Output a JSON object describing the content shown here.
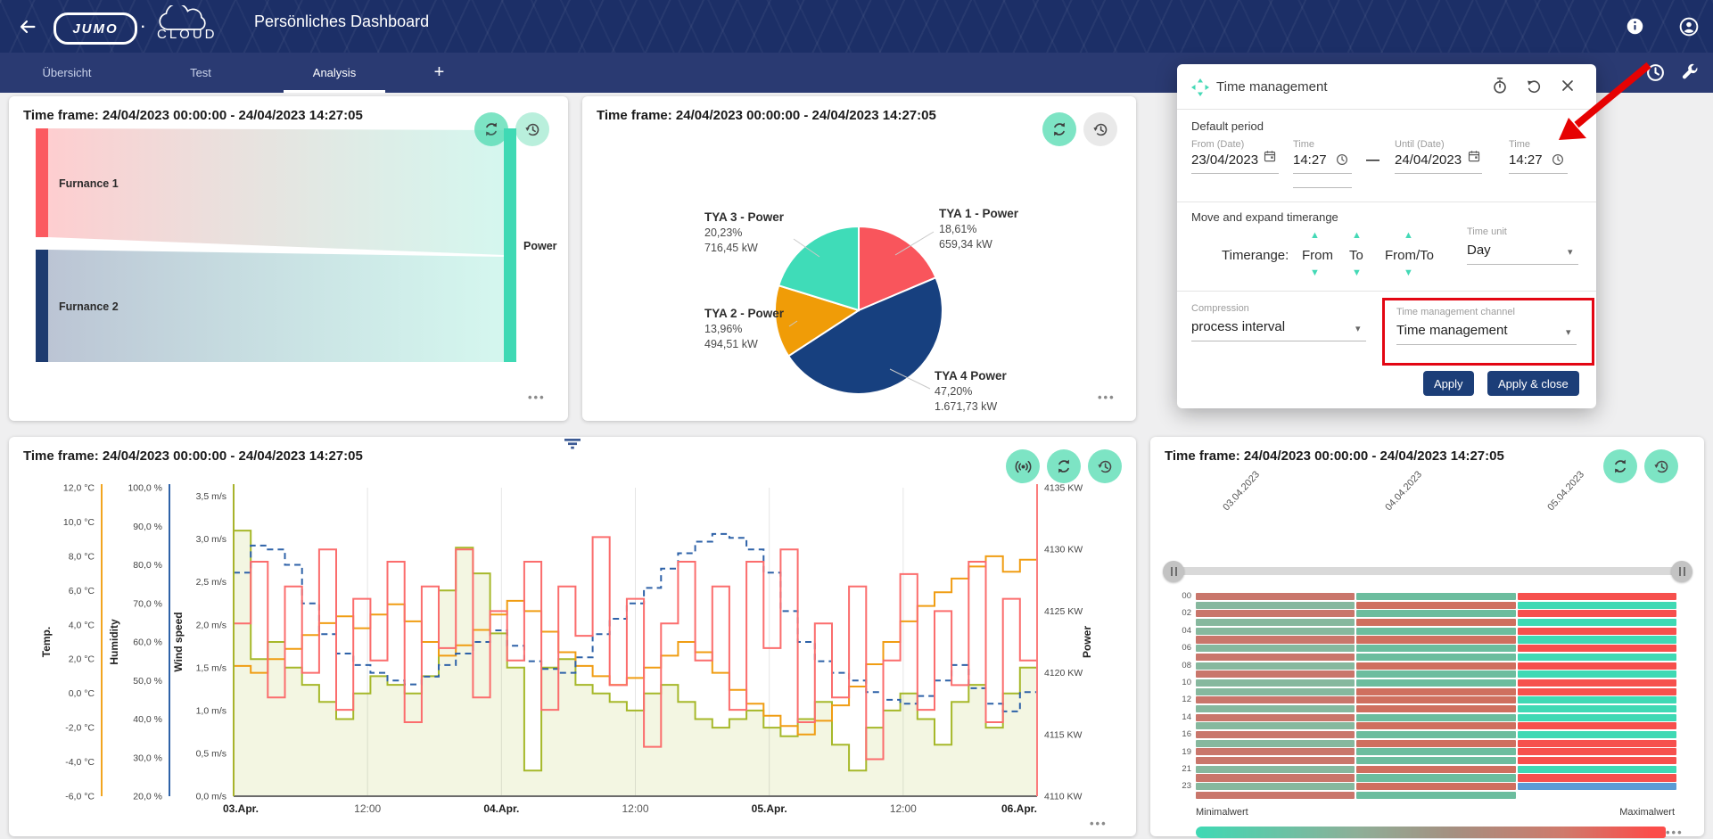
{
  "header": {
    "title": "Persönliches Dashboard",
    "brand": "JUMO",
    "brand_sub": "CLOUD",
    "brand_dot": "·"
  },
  "tabbar": {
    "tabs": [
      {
        "label": "Übersicht",
        "active": false
      },
      {
        "label": "Test",
        "active": false
      },
      {
        "label": "Analysis",
        "active": true
      }
    ],
    "add_tab_label": "+"
  },
  "cards": {
    "time_frame_title": "Time frame: 24/04/2023 00:00:00 - 24/04/2023 14:27:05",
    "menu_dots": "•••"
  },
  "dialog": {
    "title": "Time management",
    "default_period": {
      "label": "Default period",
      "from_date_label": "From (Date)",
      "from_date_value": "23/04/2023",
      "from_time_label": "Time",
      "from_time_value": "14:27",
      "range_dash": "—",
      "until_date_label": "Until (Date)",
      "until_date_value": "24/04/2023",
      "until_time_label": "Time",
      "until_time_value": "14:27"
    },
    "move_expand": {
      "label": "Move and expand timerange",
      "timerange_label": "Timerange:",
      "from_label": "From",
      "to_label": "To",
      "fromto_label": "From/To",
      "time_unit_label": "Time unit",
      "time_unit_value": "Day",
      "up_arrow": "▲",
      "down_arrow": "▼"
    },
    "compression": {
      "label": "Compression",
      "value": "process interval"
    },
    "channel": {
      "label": "Time management channel",
      "value": "Time management"
    },
    "buttons": {
      "apply": "Apply",
      "apply_close": "Apply & close"
    },
    "accent_color": "#44d9b6",
    "highlight_color": "#e30613"
  },
  "chart_data": [
    {
      "type": "sankey",
      "title": "Time frame: 24/04/2023 00:00:00 - 24/04/2023 14:27:05",
      "nodes": [
        {
          "label": "Furnance 1",
          "color": "#fb5a60"
        },
        {
          "label": "Furnance 2",
          "color": "#1d3b70"
        },
        {
          "label": "Power",
          "color": "#3fd9b4"
        }
      ],
      "links": [
        {
          "source": "Furnance 1",
          "target": "Power"
        },
        {
          "source": "Furnance 2",
          "target": "Power"
        }
      ]
    },
    {
      "type": "pie",
      "title": "Time frame: 24/04/2023 00:00:00 - 24/04/2023 14:27:05",
      "slices": [
        {
          "label": "TYA 1 - Power",
          "pct": 18.61,
          "pct_label": "18,61%",
          "value_label": "659,34 kW",
          "color": "#f9555c"
        },
        {
          "label": "TYA 4 Power",
          "pct": 47.2,
          "pct_label": "47,20%",
          "value_label": "1.671,73 kW",
          "color": "#17407f"
        },
        {
          "label": "TYA 2 - Power",
          "pct": 13.96,
          "pct_label": "13,96%",
          "value_label": "494,51 kW",
          "color": "#f09c07"
        },
        {
          "label": "TYA 3 - Power",
          "pct": 20.23,
          "pct_label": "20,23%",
          "value_label": "716,45 kW",
          "color": "#3fdcb8"
        }
      ]
    },
    {
      "type": "line",
      "title": "Time frame: 24/04/2023 00:00:00 - 24/04/2023 14:27:05",
      "x_tick_labels": [
        "03.Apr.",
        "12:00",
        "04.Apr.",
        "12:00",
        "05.Apr.",
        "12:00",
        "06.Apr."
      ],
      "axes": {
        "temp": {
          "label": "Temp.",
          "color": "#f2a51f",
          "min": -6,
          "max": 12,
          "tick_values": [
            12,
            10,
            8,
            6,
            4,
            2,
            0,
            -2,
            -4,
            -6
          ],
          "tick_labels": [
            "12,0 °C",
            "10,0 °C",
            "8,0 °C",
            "6,0 °C",
            "4,0 °C",
            "2,0 °C",
            "0,0 °C",
            "-2,0 °C",
            "-4,0 °C",
            "-6,0 °C"
          ]
        },
        "humidity": {
          "label": "Humidity",
          "color": "#2e62a8",
          "min": 20,
          "max": 100,
          "tick_values": [
            100,
            90,
            80,
            70,
            60,
            50,
            40,
            30,
            20
          ],
          "tick_labels": [
            "100,0 %",
            "90,0 %",
            "80,0 %",
            "70,0 %",
            "60,0 %",
            "50,0 %",
            "40,0 %",
            "30,0 %",
            "20,0 %"
          ]
        },
        "wind": {
          "label": "Wind speed",
          "color": "#a8b32b",
          "min": 0,
          "max": 3.6,
          "tick_values": [
            3.5,
            3.0,
            2.5,
            2.0,
            1.5,
            1.0,
            0.5,
            0.0
          ],
          "tick_labels": [
            "3,5 m/s",
            "3,0 m/s",
            "2,5 m/s",
            "2,0 m/s",
            "1,5 m/s",
            "1,0 m/s",
            "0,5 m/s",
            "0,0 m/s"
          ]
        },
        "power": {
          "label": "Power",
          "color": "#fb7d7d",
          "min": 4110,
          "max": 4135,
          "tick_values": [
            4135,
            4130,
            4125,
            4120,
            4115,
            4110
          ],
          "tick_labels": [
            "4135 KW",
            "4130 KW",
            "4125 KW",
            "4120 KW",
            "4115 KW",
            "4110 KW"
          ]
        }
      },
      "series": [
        {
          "name": "Wind speed",
          "axis": "wind",
          "color": "#a6b82a",
          "style": "step-area",
          "fill": "#f3f6e2",
          "values": [
            3.1,
            1.6,
            1.8,
            1.5,
            1.3,
            1.1,
            0.9,
            1.2,
            1.4,
            1.3,
            1.2,
            1.4,
            2.4,
            2.9,
            2.6,
            1.9,
            1.5,
            0.3,
            1.5,
            1.6,
            1.3,
            1.2,
            1.1,
            1.0,
            1.2,
            1.3,
            1.1,
            0.9,
            0.8,
            0.9,
            1.0,
            0.8,
            0.7,
            0.9,
            1.1,
            0.6,
            0.3,
            0.8,
            1.0,
            1.2,
            0.9,
            0.6,
            1.1,
            1.3,
            0.8,
            1.2,
            1.5,
            1.0
          ]
        },
        {
          "name": "Temp.",
          "axis": "temp",
          "color": "#f09d13",
          "style": "step",
          "values": [
            1.6,
            1.2,
            2.0,
            2.6,
            3.4,
            4.1,
            4.5,
            3.8,
            4.6,
            5.2,
            4.2,
            3.0,
            2.2,
            2.8,
            3.7,
            4.6,
            5.4,
            4.8,
            3.6,
            2.4,
            1.6,
            1.0,
            0.5,
            0.9,
            1.5,
            2.2,
            3.0,
            2.4,
            1.2,
            0.2,
            -0.6,
            -1.3,
            -1.9,
            -2.4,
            -1.6,
            -0.7,
            0.4,
            1.7,
            3.0,
            4.2,
            5.1,
            5.9,
            6.7,
            7.4,
            8.0,
            7.1,
            7.8,
            7.0
          ]
        },
        {
          "name": "Humidity",
          "axis": "humidity",
          "color": "#2e62a8",
          "style": "step-dashed",
          "values": [
            78,
            85,
            84,
            80,
            70,
            62,
            57,
            54,
            52,
            50,
            49,
            51,
            54,
            57,
            60,
            63,
            59,
            55,
            53,
            52,
            56,
            62,
            66,
            70,
            74,
            79,
            83,
            86,
            88,
            87,
            84,
            78,
            68,
            60,
            55,
            52,
            50,
            47,
            45,
            44,
            46,
            50,
            54,
            48,
            44,
            42,
            47,
            55
          ]
        },
        {
          "name": "Power",
          "axis": "power",
          "color": "#fb6d6d",
          "style": "step",
          "values": [
            4124,
            4129,
            4118,
            4127,
            4120,
            4130,
            4117,
            4126,
            4121,
            4129,
            4116,
            4127,
            4122,
            4130,
            4118,
            4125,
            4121,
            4129,
            4117,
            4127,
            4123,
            4131,
            4119,
            4126,
            4114,
            4124,
            4129,
            4121,
            4127,
            4117,
            4129,
            4122,
            4130,
            4116,
            4124,
            4118,
            4127,
            4113,
            4121,
            4128,
            4117,
            4125,
            4119,
            4129,
            4116,
            4126,
            4121,
            4128
          ]
        }
      ]
    },
    {
      "type": "heatmap",
      "title": "Time frame: 24/04/2023 00:00:00 - 24/04/2023 14:27:05",
      "columns": [
        "03.04.2023",
        "04.04.2023",
        "05.04.2023"
      ],
      "row_labels": [
        "00",
        "02",
        "04",
        "06",
        "08",
        "10",
        "12",
        "14",
        "16",
        "19",
        "21",
        "23"
      ],
      "legend": {
        "min": "Minimalwert",
        "max": "Maximalwert"
      },
      "palette": {
        "muted": {
          "r": "#c9766b",
          "g": "#86b89e"
        },
        "medium": {
          "r": "#cf6f5f",
          "g": "#6cbd9e"
        },
        "bright": {
          "r": "#f6504d",
          "g": "#3fd9b4"
        },
        "blue": "#5b9bd5"
      },
      "cells": [
        [
          "r",
          "g",
          "r"
        ],
        [
          "g",
          "r",
          "g"
        ],
        [
          "r",
          "g",
          "r"
        ],
        [
          "g",
          "r",
          "g"
        ],
        [
          "g",
          "g",
          "r"
        ],
        [
          "r",
          "r",
          "g"
        ],
        [
          "g",
          "g",
          "r"
        ],
        [
          "r",
          "g",
          "g"
        ],
        [
          "g",
          "r",
          "r"
        ],
        [
          "r",
          "g",
          "g"
        ],
        [
          "g",
          "g",
          "r"
        ],
        [
          "g",
          "r",
          "r"
        ],
        [
          "r",
          "r",
          "g"
        ],
        [
          "g",
          "r",
          "g"
        ],
        [
          "r",
          "g",
          "g"
        ],
        [
          "g",
          "r",
          "r"
        ],
        [
          "r",
          "g",
          "g"
        ],
        [
          "g",
          "r",
          "r"
        ],
        [
          "r",
          "g",
          "r"
        ],
        [
          "r",
          "g",
          "r"
        ],
        [
          "g",
          "r",
          "g"
        ],
        [
          "r",
          "g",
          "r"
        ],
        [
          "g",
          "r",
          "b"
        ],
        [
          "r",
          "g",
          "x"
        ]
      ]
    }
  ]
}
